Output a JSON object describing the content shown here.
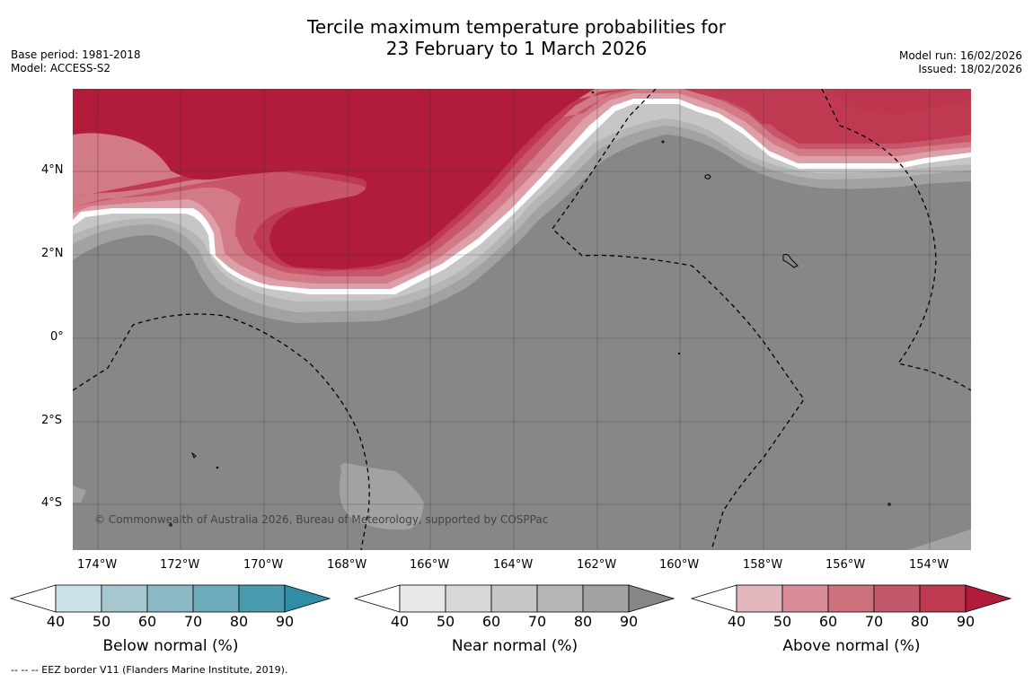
{
  "title": {
    "line1": "Tercile maximum temperature probabilities for",
    "line2": "23 February to 1 March 2026"
  },
  "meta_left": {
    "base_period": "Base period: 1981-2018",
    "model": "Model: ACCESS-S2"
  },
  "meta_right": {
    "model_run": "Model run: 16/02/2026",
    "issued": "Issued: 18/02/2026"
  },
  "map": {
    "lat_labels": [
      "4°N",
      "2°N",
      "0°",
      "2°S",
      "4°S"
    ],
    "lon_labels": [
      "174°W",
      "172°W",
      "170°W",
      "168°W",
      "166°W",
      "164°W",
      "162°W",
      "160°W",
      "158°W",
      "156°W",
      "154°W"
    ],
    "copyright": "© Commonwealth of Australia 2026, Bureau of Meteorology, supported by COSPPac",
    "colors": {
      "near_normal_90": "#878787",
      "near_normal_80": "#a2a2a2",
      "near_normal_70": "#b5b5b5",
      "near_normal_60": "#c6c6c6",
      "near_normal_50": "#d9d9d9",
      "above_90": "#b01c3a",
      "above_80": "#bf3a50",
      "above_70": "#c95668",
      "above_60": "#d27a86",
      "above_50": "#dda0a8"
    }
  },
  "colorbars": [
    {
      "title": "Below normal (%)",
      "ticks": [
        "40",
        "50",
        "60",
        "70",
        "80",
        "90"
      ],
      "colors": [
        "#ffffff",
        "#cde3ea",
        "#a7c7ce",
        "#8ab8c5",
        "#6eabba",
        "#4a9bad",
        "#2f8ea5"
      ]
    },
    {
      "title": "Near normal (%)",
      "ticks": [
        "40",
        "50",
        "60",
        "70",
        "80",
        "90"
      ],
      "colors": [
        "#ffffff",
        "#e8e8e8",
        "#d8d8d8",
        "#c6c6c6",
        "#b5b5b5",
        "#a2a2a2",
        "#878787"
      ]
    },
    {
      "title": "Above normal (%)",
      "ticks": [
        "40",
        "50",
        "60",
        "70",
        "80",
        "90"
      ],
      "colors": [
        "#ffffff",
        "#e2b6bc",
        "#d98d98",
        "#cd717c",
        "#c3586a",
        "#bf3a50",
        "#b01c3a"
      ]
    }
  ],
  "footer": "--  --  -- EEZ border V11 (Flanders Marine Institute, 2019)."
}
